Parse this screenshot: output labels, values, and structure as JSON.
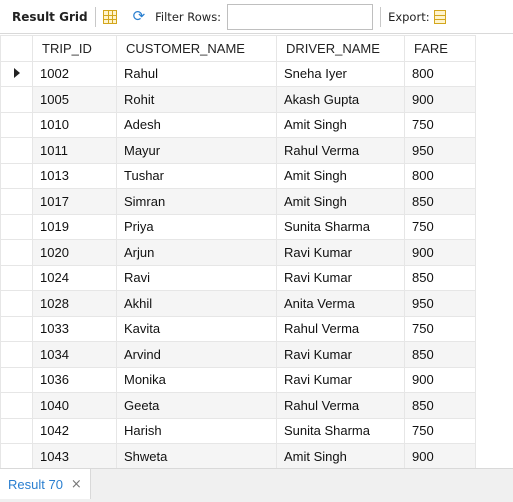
{
  "toolbar": {
    "result_grid_label": "Result Grid",
    "filter_label": "Filter Rows:",
    "filter_value": "",
    "export_label": "Export:",
    "icons": [
      "grid-icon",
      "refresh-icon",
      "export-icon"
    ]
  },
  "table": {
    "columns": [
      "TRIP_ID",
      "CUSTOMER_NAME",
      "DRIVER_NAME",
      "FARE"
    ],
    "rows": [
      [
        "1002",
        "Rahul",
        "Sneha Iyer",
        "800"
      ],
      [
        "1005",
        "Rohit",
        "Akash Gupta",
        "900"
      ],
      [
        "1010",
        "Adesh",
        "Amit Singh",
        "750"
      ],
      [
        "1011",
        "Mayur",
        "Rahul Verma",
        "950"
      ],
      [
        "1013",
        "Tushar",
        "Amit Singh",
        "800"
      ],
      [
        "1017",
        "Simran",
        "Amit Singh",
        "850"
      ],
      [
        "1019",
        "Priya",
        "Sunita Sharma",
        "750"
      ],
      [
        "1020",
        "Arjun",
        "Ravi Kumar",
        "900"
      ],
      [
        "1024",
        "Ravi",
        "Ravi Kumar",
        "850"
      ],
      [
        "1028",
        "Akhil",
        "Anita Verma",
        "950"
      ],
      [
        "1033",
        "Kavita",
        "Rahul Verma",
        "750"
      ],
      [
        "1034",
        "Arvind",
        "Ravi Kumar",
        "850"
      ],
      [
        "1036",
        "Monika",
        "Ravi Kumar",
        "900"
      ],
      [
        "1040",
        "Geeta",
        "Rahul Verma",
        "850"
      ],
      [
        "1042",
        "Harish",
        "Sunita Sharma",
        "750"
      ],
      [
        "1043",
        "Shweta",
        "Amit Singh",
        "900"
      ]
    ]
  },
  "tabs": [
    {
      "label": "Result 70",
      "close": "×"
    }
  ],
  "colors": {
    "accent": "#2a7fd0",
    "grid_icon": "#d3a61d",
    "alt_row": "#f5f5f5"
  }
}
